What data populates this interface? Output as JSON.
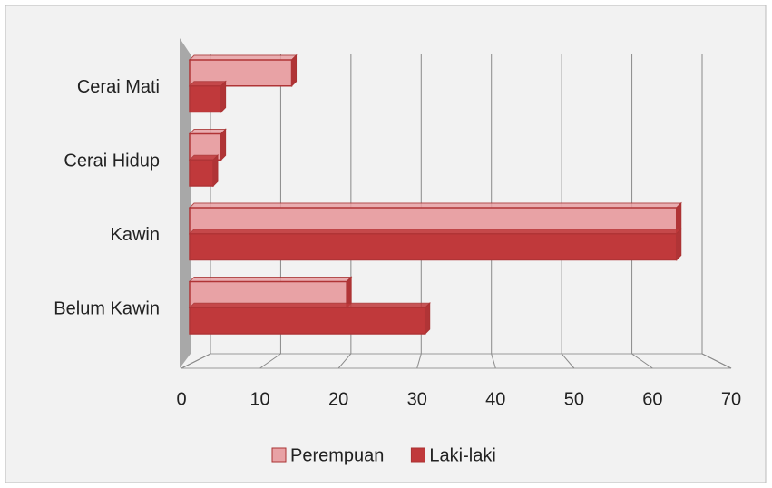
{
  "chart_data": {
    "type": "bar",
    "orientation": "horizontal",
    "categories": [
      "Belum Kawin",
      "Kawin",
      "Cerai Hidup",
      "Cerai Mati"
    ],
    "series": [
      {
        "name": "Perempuan",
        "color": "#e8a2a5",
        "values": [
          20,
          62,
          4,
          13
        ]
      },
      {
        "name": "Laki-laki",
        "color": "#c0393b",
        "values": [
          30,
          62,
          3,
          4
        ]
      }
    ],
    "xlim": [
      0,
      70
    ],
    "xticks": [
      0,
      10,
      20,
      30,
      40,
      50,
      60,
      70
    ],
    "grid": true,
    "legend": "bottom"
  }
}
